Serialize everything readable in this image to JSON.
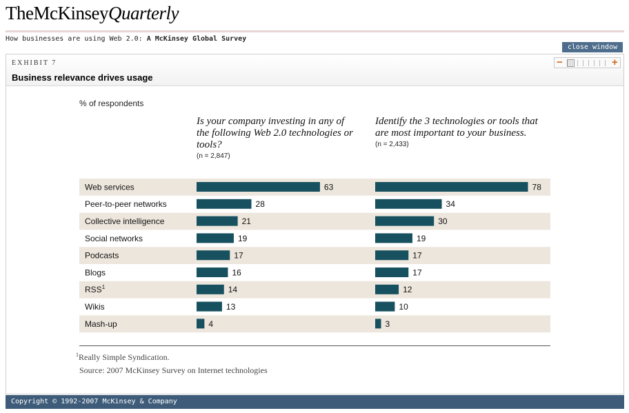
{
  "header": {
    "brand_the": "The",
    "brand_mckinsey": "McKinsey",
    "brand_quarterly": "Quarterly",
    "subhead_prefix": "How businesses are using Web 2.0:",
    "subhead_bold": "A McKinsey Global Survey",
    "close_label": "close window"
  },
  "exhibit": {
    "number_label": "EXHIBIT 7",
    "title": "Business relevance drives usage",
    "zoom_minus": "−",
    "zoom_plus": "+"
  },
  "colors": {
    "bar": "#17505f",
    "stripe": "#ede6dd",
    "header_band": "#3e5c7a"
  },
  "chart_data": {
    "type": "bar",
    "orientation": "horizontal",
    "unit_label": "% of respondents",
    "categories": [
      "Web services",
      "Peer-to-peer networks",
      "Collective intelligence",
      "Social networks",
      "Podcasts",
      "Blogs",
      "RSS",
      "Wikis",
      "Mash-up"
    ],
    "category_footnote_marks": [
      "",
      "",
      "",
      "",
      "",
      "",
      "1",
      "",
      ""
    ],
    "series": [
      {
        "question": "Is your company investing in any of the following Web 2.0 technologies or tools?",
        "n": "(n = 2,847)",
        "values": [
          63,
          28,
          21,
          19,
          17,
          16,
          14,
          13,
          4
        ]
      },
      {
        "question": "Identify the 3 technologies or tools that are most important to your business.",
        "n": "(n = 2,433)",
        "values": [
          78,
          34,
          30,
          19,
          17,
          17,
          12,
          10,
          3
        ]
      }
    ],
    "xlim": [
      0,
      80
    ],
    "grid": false,
    "legend": "none"
  },
  "notes": {
    "footnote_mark": "1",
    "footnote_text": "Really Simple Syndication.",
    "source": "Source: 2007 McKinsey Survey on Internet technologies"
  },
  "footer": {
    "copyright": "Copyright © 1992-2007 McKinsey & Company"
  }
}
